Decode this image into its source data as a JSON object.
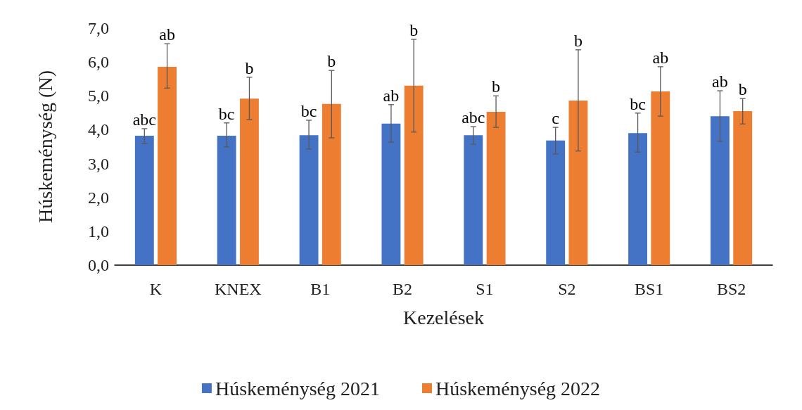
{
  "chart_data": {
    "type": "bar",
    "xlabel": "Kezelések",
    "ylabel": "Húskeménység (N)",
    "categories": [
      "K",
      "KNEX",
      "B1",
      "B2",
      "S1",
      "S2",
      "BS1",
      "BS2"
    ],
    "series": [
      {
        "name": "Húskeménység 2021",
        "color": "#4472c4",
        "values": [
          3.82,
          3.82,
          3.84,
          4.18,
          3.84,
          3.68,
          3.9,
          4.4
        ],
        "errors": [
          [
            3.59,
            4.03
          ],
          [
            3.49,
            4.2
          ],
          [
            3.43,
            4.28
          ],
          [
            3.63,
            4.74
          ],
          [
            3.57,
            4.09
          ],
          [
            3.28,
            4.07
          ],
          [
            3.34,
            4.49
          ],
          [
            3.66,
            5.15
          ]
        ],
        "value_labels": [
          "abc",
          "bc",
          "bc",
          "ab",
          "abc",
          "c",
          "bc",
          "ab"
        ]
      },
      {
        "name": "Húskeménység 2022",
        "color": "#ed7d31",
        "values": [
          5.86,
          4.92,
          4.76,
          5.3,
          4.53,
          4.86,
          5.13,
          4.55
        ],
        "errors": [
          [
            5.23,
            6.54
          ],
          [
            4.3,
            5.55
          ],
          [
            3.76,
            5.75
          ],
          [
            3.93,
            6.67
          ],
          [
            4.07,
            5.0
          ],
          [
            3.37,
            6.36
          ],
          [
            4.4,
            5.86
          ],
          [
            4.17,
            4.92
          ]
        ],
        "value_labels": [
          "ab",
          "b",
          "b",
          "b",
          "b",
          "b",
          "ab",
          "b"
        ]
      }
    ],
    "ylim": [
      0,
      7
    ],
    "yticks": [
      {
        "value": 0,
        "label": "0,0"
      },
      {
        "value": 1,
        "label": "1,0"
      },
      {
        "value": 2,
        "label": "2,0"
      },
      {
        "value": 3,
        "label": "3,0"
      },
      {
        "value": 4,
        "label": "4,0"
      },
      {
        "value": 5,
        "label": "5,0"
      },
      {
        "value": 6,
        "label": "6,0"
      },
      {
        "value": 7,
        "label": "7,0"
      }
    ],
    "grid": false,
    "legend": "bottom"
  }
}
